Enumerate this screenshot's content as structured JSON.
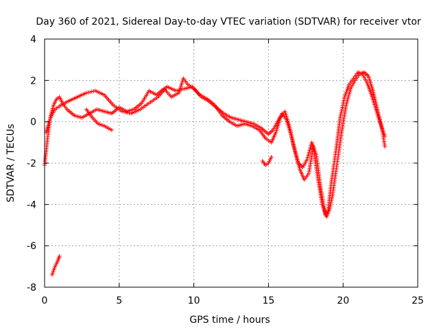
{
  "chart_data": {
    "type": "scatter",
    "title": "Day 360 of 2021, Sidereal Day-to-day VTEC variation (SDTVAR) for receiver vtor",
    "xlabel": "GPS time / hours",
    "ylabel": "SDTVAR / TECUs",
    "xlim": [
      0,
      25
    ],
    "ylim": [
      -8,
      4
    ],
    "xticks": [
      0,
      5,
      10,
      15,
      20,
      25
    ],
    "yticks": [
      -8,
      -6,
      -4,
      -2,
      0,
      2,
      4
    ],
    "grid": true,
    "marker": "+",
    "colors": {
      "series": "#ff0000",
      "grid": "#a0a0a0",
      "axis": "#000000"
    },
    "series": [
      {
        "name": "SDTVAR",
        "track_a_x": [
          0.0,
          0.2,
          0.4,
          0.6,
          0.8,
          1.0,
          1.2,
          1.5,
          2.0,
          2.5,
          3.0,
          3.5,
          4.0,
          4.5,
          5.0,
          5.5,
          6.0,
          6.5,
          7.0,
          7.5,
          8.0,
          8.5,
          9.0,
          9.3,
          9.6,
          10.0,
          10.5,
          11.0,
          11.5,
          12.0,
          12.5,
          13.0,
          13.5,
          14.0,
          14.5,
          15.0,
          15.3,
          15.6,
          15.9,
          16.2,
          16.5,
          16.8,
          17.1,
          17.4,
          17.7,
          18.0,
          18.3,
          18.6,
          18.9,
          19.1,
          19.3,
          19.6,
          19.9,
          20.2,
          20.5,
          20.8,
          21.1,
          21.4,
          21.7,
          22.0,
          22.3,
          22.6,
          22.8
        ],
        "track_a_y": [
          -2.1,
          -0.8,
          0.3,
          0.8,
          1.1,
          1.2,
          0.9,
          0.6,
          0.3,
          0.2,
          0.4,
          0.6,
          0.5,
          0.4,
          0.7,
          0.5,
          0.6,
          0.9,
          1.5,
          1.3,
          1.6,
          1.2,
          1.4,
          2.1,
          1.8,
          1.6,
          1.2,
          1.0,
          0.7,
          0.4,
          0.2,
          0.1,
          0.0,
          -0.1,
          -0.3,
          -0.6,
          -0.4,
          0.0,
          0.4,
          0.1,
          -0.6,
          -1.5,
          -2.3,
          -2.8,
          -2.5,
          -1.2,
          -2.7,
          -4.0,
          -4.6,
          -4.2,
          -3.5,
          -2.0,
          -0.5,
          0.8,
          1.6,
          2.0,
          2.3,
          2.4,
          2.2,
          1.5,
          0.6,
          -0.3,
          -1.2
        ],
        "track_b_x": [
          0.1,
          0.4,
          0.7,
          1.1,
          1.6,
          2.2,
          2.8,
          3.4,
          4.0,
          4.6,
          5.2,
          5.8,
          6.4,
          7.0,
          7.6,
          8.2,
          8.8,
          9.4,
          9.9,
          10.4,
          10.9,
          11.4,
          11.9,
          12.4,
          12.9,
          13.4,
          13.9,
          14.4,
          14.8,
          15.2,
          15.5,
          15.8,
          16.1,
          16.4,
          16.7,
          17.0,
          17.3,
          17.6,
          17.9,
          18.2,
          18.5,
          18.8,
          19.0,
          19.2,
          19.5,
          19.8,
          20.1,
          20.4,
          20.7,
          21.0,
          21.3,
          21.6,
          21.9,
          22.2,
          22.5,
          22.8
        ],
        "track_b_y": [
          -0.5,
          0.2,
          0.6,
          0.8,
          1.0,
          1.2,
          1.4,
          1.5,
          1.3,
          0.8,
          0.5,
          0.4,
          0.6,
          0.9,
          1.2,
          1.7,
          1.5,
          1.6,
          1.7,
          1.3,
          1.1,
          0.8,
          0.3,
          0.0,
          -0.2,
          -0.1,
          -0.2,
          -0.4,
          -0.8,
          -1.0,
          -0.5,
          0.2,
          0.5,
          -0.2,
          -1.2,
          -2.0,
          -2.2,
          -1.8,
          -1.0,
          -1.6,
          -3.2,
          -4.5,
          -4.3,
          -3.0,
          -1.5,
          0.2,
          1.2,
          1.8,
          2.1,
          2.4,
          2.3,
          1.9,
          1.3,
          0.6,
          -0.1,
          -0.7
        ],
        "track_c_x": [
          0.5,
          0.7,
          0.9,
          1.0
        ],
        "track_c_y": [
          -7.4,
          -7.0,
          -6.7,
          -6.5
        ],
        "track_d_x": [
          2.8,
          3.2,
          3.6,
          4.0,
          4.5
        ],
        "track_d_y": [
          0.6,
          0.2,
          -0.1,
          -0.2,
          -0.4
        ],
        "track_e_x": [
          14.6,
          14.8,
          15.0,
          15.2
        ],
        "track_e_y": [
          -1.9,
          -2.1,
          -2.0,
          -1.7
        ]
      }
    ]
  }
}
